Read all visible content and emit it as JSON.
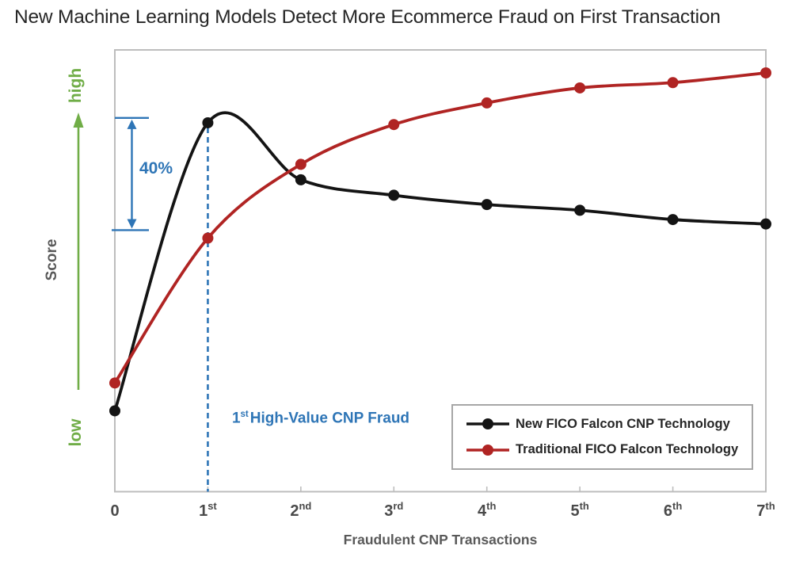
{
  "title": "New Machine Learning Models Detect More Ecommerce Fraud on First Transaction",
  "chart_data": {
    "type": "line",
    "title": "New Machine Learning Models Detect More Ecommerce Fraud on First Transaction",
    "xlabel": "Fraudulent CNP Transactions",
    "ylabel": "Score",
    "y_axis_range_labels": {
      "high": "high",
      "low": "low"
    },
    "x_values": [
      0,
      1,
      2,
      3,
      4,
      5,
      6,
      7
    ],
    "x_tick_labels": [
      {
        "base": "0",
        "sup": ""
      },
      {
        "base": "1",
        "sup": "st"
      },
      {
        "base": "2",
        "sup": "nd"
      },
      {
        "base": "3",
        "sup": "rd"
      },
      {
        "base": "4",
        "sup": "th"
      },
      {
        "base": "5",
        "sup": "th"
      },
      {
        "base": "6",
        "sup": "th"
      },
      {
        "base": "7",
        "sup": "th"
      }
    ],
    "ylim": [
      0,
      1
    ],
    "y_units": "relative score (low to high, unlabeled axis)",
    "grid": false,
    "legend_position": "inside bottom-right",
    "series": [
      {
        "name": "New FICO Falcon CNP Technology",
        "color": "#141414",
        "marker": "circle",
        "smooth": true,
        "values": [
          0.183,
          0.835,
          0.706,
          0.671,
          0.65,
          0.637,
          0.616,
          0.606
        ]
      },
      {
        "name": "Traditional FICO Falcon Technology",
        "color": "#b02423",
        "marker": "circle",
        "smooth": true,
        "values": [
          0.246,
          0.574,
          0.741,
          0.831,
          0.88,
          0.914,
          0.926,
          0.948
        ]
      }
    ],
    "annotations": {
      "delta": {
        "text": "40%",
        "color": "#2e75b6",
        "x": 0,
        "y_from": 0.592,
        "y_to": 0.846
      },
      "event_line": {
        "x": 1,
        "style": "dashed",
        "color": "#2e75b6",
        "label_prefix": "1",
        "label_sup": "st",
        "label_rest": "High-Value CNP Fraud"
      }
    },
    "accent_colors": {
      "blue": "#2e75b6",
      "green": "#70ad47",
      "axis_gray": "#bdbdbd"
    }
  }
}
